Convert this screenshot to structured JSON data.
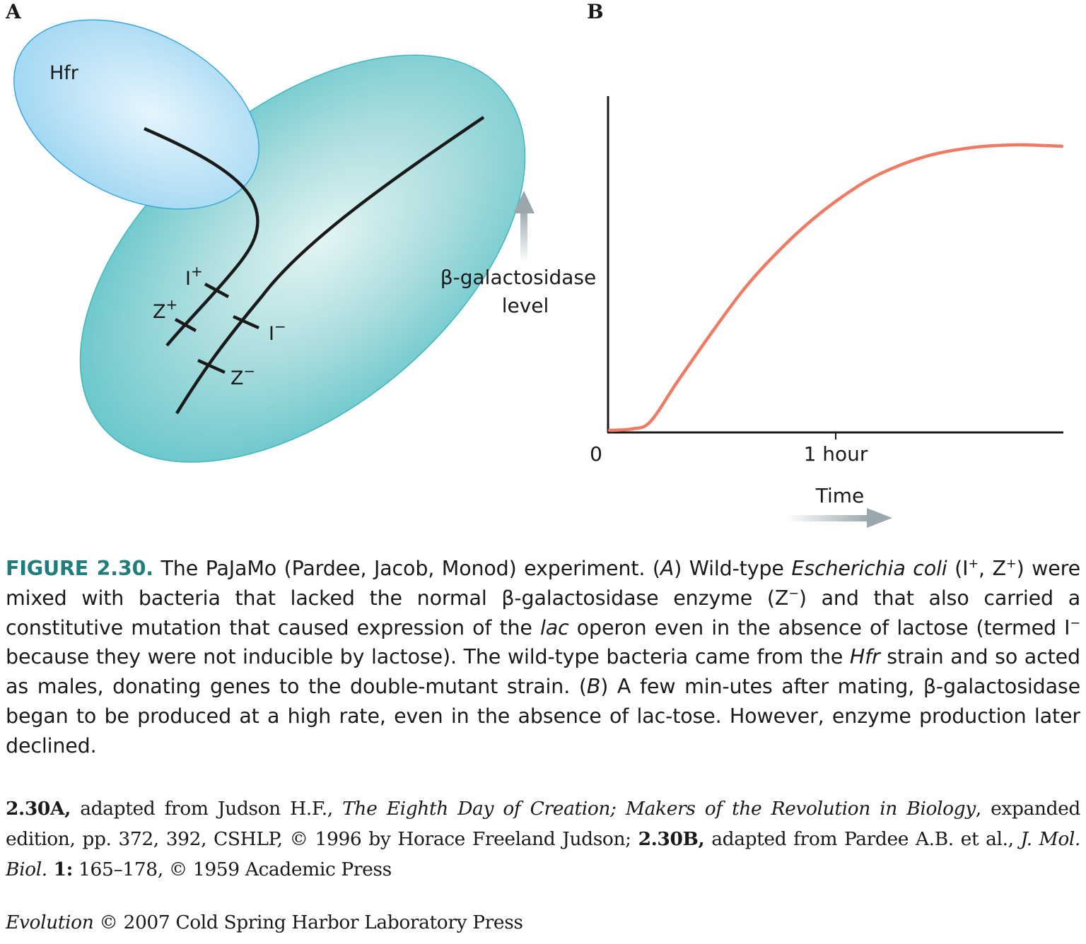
{
  "panel_a": {
    "letter": "A",
    "donor_cell_label": "Hfr",
    "gene_labels": {
      "i_plus": "I",
      "i_plus_sup": "+",
      "z_plus": "Z",
      "z_plus_sup": "+",
      "i_minus": "I",
      "i_minus_sup": "−",
      "z_minus": "Z",
      "z_minus_sup": "−"
    },
    "colors": {
      "donor_cell": "#9fd6f2",
      "recipient_cell": "#6cc8cc",
      "dna": "#1a1a1a"
    }
  },
  "panel_b": {
    "letter": "B",
    "y_axis_label_line1": "β-galactosidase",
    "y_axis_label_line2": "level",
    "x_tick_origin": "0",
    "x_tick_1": "1 hour",
    "x_axis_label": "Time",
    "curve_color": "#ee7b63"
  },
  "chart_data": {
    "type": "line",
    "title": "",
    "xlabel": "Time",
    "ylabel": "β-galactosidase level",
    "xlim": [
      0,
      2
    ],
    "ylim": [
      0,
      1
    ],
    "x_ticks": [
      {
        "value": 0,
        "label": "0"
      },
      {
        "value": 1,
        "label": "1 hour"
      }
    ],
    "series": [
      {
        "color": "#ee7b63",
        "x": [
          0,
          0.1,
          0.18,
          0.3,
          0.45,
          0.6,
          0.75,
          0.9,
          1.05,
          1.2,
          1.4,
          1.6,
          1.8,
          2.0
        ],
        "y": [
          0.0,
          0.005,
          0.03,
          0.17,
          0.34,
          0.5,
          0.63,
          0.74,
          0.83,
          0.9,
          0.96,
          0.99,
          1.0,
          0.995
        ]
      }
    ]
  },
  "caption": {
    "label": "FIGURE 2.30.",
    "p1": " The PaJaMo (Pardee, Jacob, Monod) experiment. (",
    "a_it": "A",
    "p2": ") Wild-type ",
    "ecoli_it": "Escherichia coli",
    "p3": " (I",
    "sup_plus1": "+",
    "p4": ", Z",
    "sup_plus2": "+",
    "p5": ") were mixed with bacteria that lacked the normal β-galactosidase enzyme (Z",
    "sup_minus1": "−",
    "p6": ") and that also carried a constitutive mutation that caused expression of the ",
    "lac_it": "lac",
    "p7": " operon even in the absence of lactose (termed I",
    "sup_minus2": "−",
    "p8": " because they were not inducible by lactose). The wild-type bacteria came from the ",
    "hfr_it": "Hfr",
    "p9": " strain and so acted as males, donating genes to the double-mutant strain. (",
    "b_it": "B",
    "p10": ") A few min-utes after mating, β-galactosidase began to be produced at a high rate, even in the absence of lac-tose. However, enzyme production later declined."
  },
  "credit": {
    "a_bold": "2.30A,",
    "a_text": " adapted from Judson H.F., ",
    "a_book_it": "The Eighth Day of Creation; Makers of the Revolution in Biology",
    "a_rest": ", expanded edition, pp. 372, 392, CSHLP, © 1996 by Horace Freeland Judson; ",
    "b_bold": "2.30B,",
    "b_text": " adapted from Pardee A.B. et al., ",
    "b_journal_it": "J. Mol. Biol.",
    "b_vol_bold": " 1:",
    "b_rest": " 165–178, © 1959 Academic Press"
  },
  "footer": {
    "book_it": "Evolution",
    "text": " © 2007 Cold Spring Harbor Laboratory Press"
  }
}
